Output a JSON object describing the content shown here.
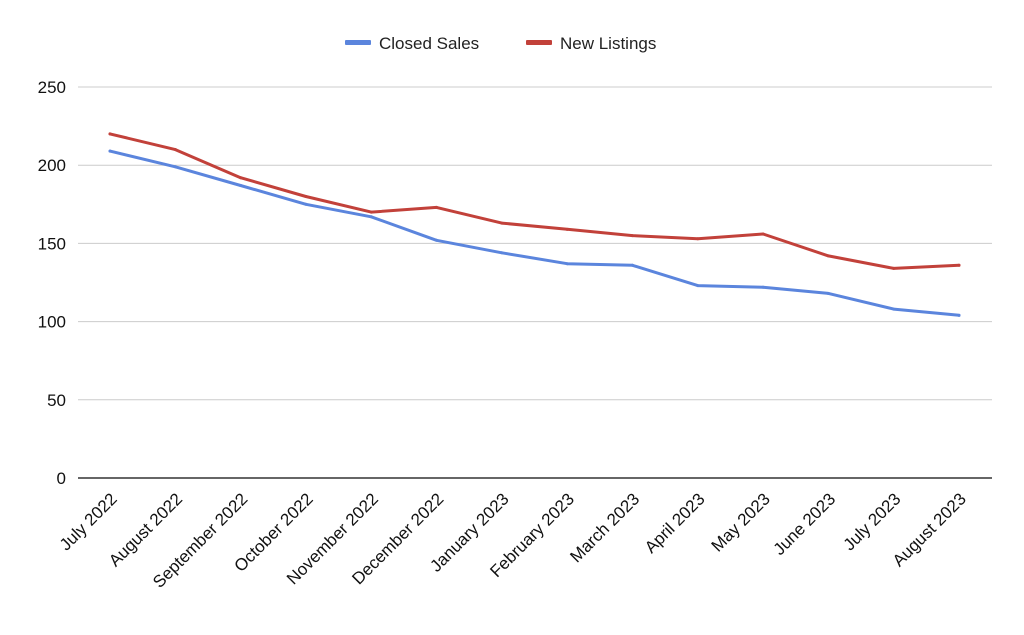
{
  "chart_data": {
    "type": "line",
    "title": "",
    "xlabel": "",
    "ylabel": "",
    "ylim": [
      0,
      250
    ],
    "yticks": [
      0,
      50,
      100,
      150,
      200,
      250
    ],
    "grid": true,
    "legend_position": "top-center",
    "categories": [
      "July 2022",
      "August 2022",
      "September 2022",
      "October 2022",
      "November 2022",
      "December 2022",
      "January 2023",
      "February 2023",
      "March 2023",
      "April 2023",
      "May 2023",
      "June 2023",
      "July 2023",
      "August 2023"
    ],
    "series": [
      {
        "name": "Closed Sales",
        "color": "#5b85dd",
        "values": [
          209,
          199,
          187,
          175,
          167,
          152,
          144,
          137,
          136,
          123,
          122,
          118,
          108,
          104
        ]
      },
      {
        "name": "New Listings",
        "color": "#c2413a",
        "values": [
          220,
          210,
          192,
          180,
          170,
          173,
          163,
          159,
          155,
          153,
          156,
          142,
          134,
          136
        ]
      }
    ]
  }
}
